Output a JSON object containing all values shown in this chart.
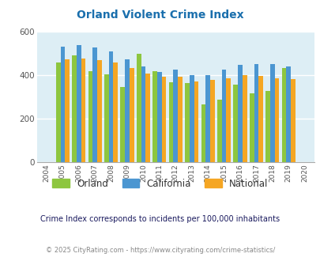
{
  "title": "Orland Violent Crime Index",
  "years": [
    2004,
    2005,
    2006,
    2007,
    2008,
    2009,
    2010,
    2011,
    2012,
    2013,
    2014,
    2015,
    2016,
    2017,
    2018,
    2019,
    2020
  ],
  "orland": [
    null,
    455,
    490,
    415,
    402,
    345,
    497,
    418,
    365,
    363,
    265,
    285,
    355,
    315,
    325,
    432,
    null
  ],
  "california": [
    null,
    530,
    535,
    525,
    508,
    470,
    440,
    412,
    425,
    400,
    400,
    425,
    447,
    450,
    450,
    438,
    null
  ],
  "national": [
    null,
    470,
    475,
    467,
    455,
    430,
    405,
    390,
    392,
    368,
    375,
    385,
    400,
    395,
    383,
    380,
    null
  ],
  "orland_color": "#8dc63f",
  "california_color": "#4b96d1",
  "national_color": "#f5a623",
  "bg_color": "#ddeef5",
  "ylim": [
    0,
    600
  ],
  "yticks": [
    0,
    200,
    400,
    600
  ],
  "subtitle": "Crime Index corresponds to incidents per 100,000 inhabitants",
  "footer": "© 2025 CityRating.com - https://www.cityrating.com/crime-statistics/",
  "legend_labels": [
    "Orland",
    "California",
    "National"
  ],
  "title_color": "#1a6fad",
  "subtitle_color": "#1a1a5e",
  "footer_color": "#888888",
  "footer_link_color": "#4a90d9"
}
